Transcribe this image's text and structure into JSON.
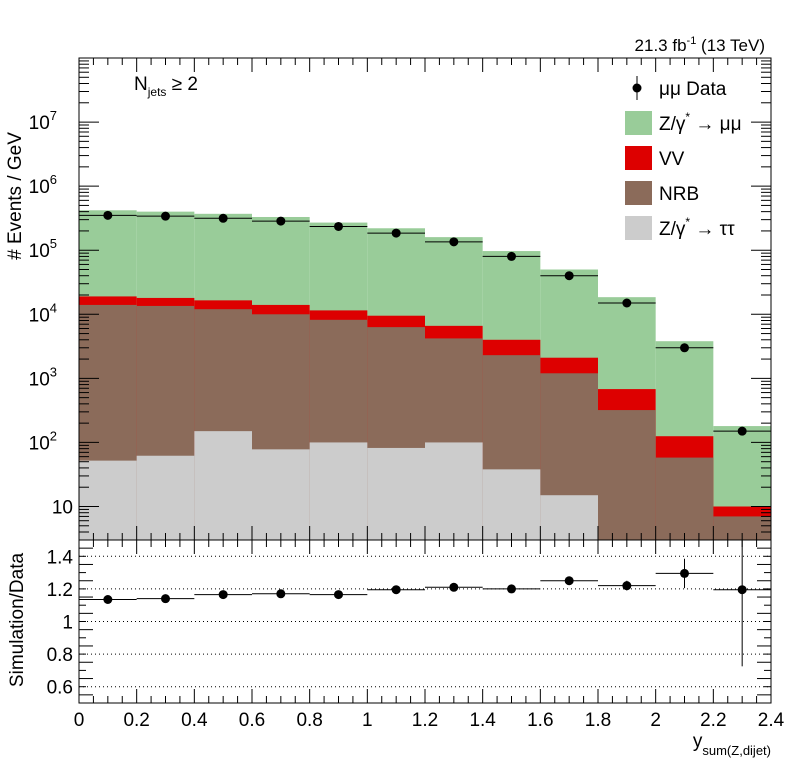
{
  "chart_data": [
    {
      "type": "bar",
      "subtype": "stacked-histogram",
      "yscale": "log",
      "ylabel": "# Events / GeV",
      "xlim": [
        0,
        2.4
      ],
      "ylim": [
        3,
        100000000.0
      ],
      "lumi_label": "21.3 fb",
      "lumi_sup": "-1",
      "lumi_suffix": " (13 TeV)",
      "annotation": {
        "main": "N",
        "sub": "jets",
        "rest": " ≥ 2"
      },
      "bin_edges": [
        0,
        0.2,
        0.4,
        0.6,
        0.8,
        1.0,
        1.2,
        1.4,
        1.6,
        1.8,
        2.0,
        2.2,
        2.4
      ],
      "y_ticks": [
        {
          "v": 10,
          "label": "10",
          "exp": ""
        },
        {
          "v": 100,
          "label": "10",
          "exp": "2"
        },
        {
          "v": 1000,
          "label": "10",
          "exp": "3"
        },
        {
          "v": 10000,
          "label": "10",
          "exp": "4"
        },
        {
          "v": 100000,
          "label": "10",
          "exp": "5"
        },
        {
          "v": 1000000,
          "label": "10",
          "exp": "6"
        },
        {
          "v": 10000000,
          "label": "10",
          "exp": "7"
        }
      ],
      "stack_series": [
        {
          "name": "Z/γ* → ττ",
          "color": "#cccccc",
          "values": [
            52,
            62,
            150,
            78,
            100,
            82,
            100,
            38,
            15,
            0,
            0,
            0
          ]
        },
        {
          "name": "NRB",
          "color": "#8b6b5a",
          "cumulative_top": [
            14000,
            13500,
            12000,
            10000,
            8200,
            6300,
            4200,
            2300,
            1200,
            320,
            58,
            7
          ]
        },
        {
          "name": "VV",
          "color": "#dd0000",
          "cumulative_top": [
            19000,
            18000,
            16500,
            14000,
            11500,
            9500,
            6600,
            4000,
            2100,
            680,
            125,
            10
          ]
        },
        {
          "name": "Z/γ* → μμ",
          "color": "#99cc99",
          "cumulative_top": [
            420000,
            400000,
            370000,
            330000,
            270000,
            220000,
            160000,
            97000,
            50000,
            18500,
            3800,
            180
          ]
        }
      ],
      "data_series": {
        "name": "μμ Data",
        "x": [
          0.1,
          0.3,
          0.5,
          0.7,
          0.9,
          1.1,
          1.3,
          1.5,
          1.7,
          1.9,
          2.1,
          2.3
        ],
        "values": [
          350000,
          340000,
          315000,
          285000,
          235000,
          185000,
          135000,
          80000,
          40000,
          15000,
          3000,
          150
        ]
      },
      "legend": {
        "placement": "top-right",
        "entries": [
          {
            "label": "μμ Data",
            "style": "marker"
          },
          {
            "label": "Z/γ",
            "sup": "*",
            "rest": " → μμ",
            "style": "box",
            "color": "#99cc99"
          },
          {
            "label": "VV",
            "sup": "",
            "rest": "",
            "style": "box",
            "color": "#dd0000"
          },
          {
            "label": "NRB",
            "sup": "",
            "rest": "",
            "style": "box",
            "color": "#8b6b5a"
          },
          {
            "label": "Z/γ",
            "sup": "*",
            "rest": " → ττ",
            "style": "box",
            "color": "#cccccc"
          }
        ]
      }
    },
    {
      "type": "scatter",
      "subtype": "ratio",
      "ylabel": "Simulation/Data",
      "xlabel_main": "y",
      "xlabel_sub": "sum(Z,dijet)",
      "xlim": [
        0,
        2.4
      ],
      "ylim": [
        0.5,
        1.5
      ],
      "x_tick_labels": [
        "0",
        "0.2",
        "0.4",
        "0.6",
        "0.8",
        "1",
        "1.2",
        "1.4",
        "1.6",
        "1.8",
        "2",
        "2.2",
        "2.4"
      ],
      "y_tick_labels": [
        "0.6",
        "0.8",
        "1",
        "1.2",
        "1.4"
      ],
      "y_ticks": [
        0.6,
        0.8,
        1.0,
        1.2,
        1.4
      ],
      "grid": "dotted-horizontal",
      "x": [
        0.1,
        0.3,
        0.5,
        0.7,
        0.9,
        1.1,
        1.3,
        1.5,
        1.7,
        1.9,
        2.1,
        2.3
      ],
      "values": [
        1.135,
        1.14,
        1.165,
        1.17,
        1.165,
        1.195,
        1.21,
        1.2,
        1.25,
        1.22,
        1.295,
        1.195
      ],
      "errors": [
        0.004,
        0.004,
        0.004,
        0.004,
        0.004,
        0.004,
        0.004,
        0.006,
        0.012,
        0.03,
        0.09,
        0.47
      ]
    }
  ]
}
